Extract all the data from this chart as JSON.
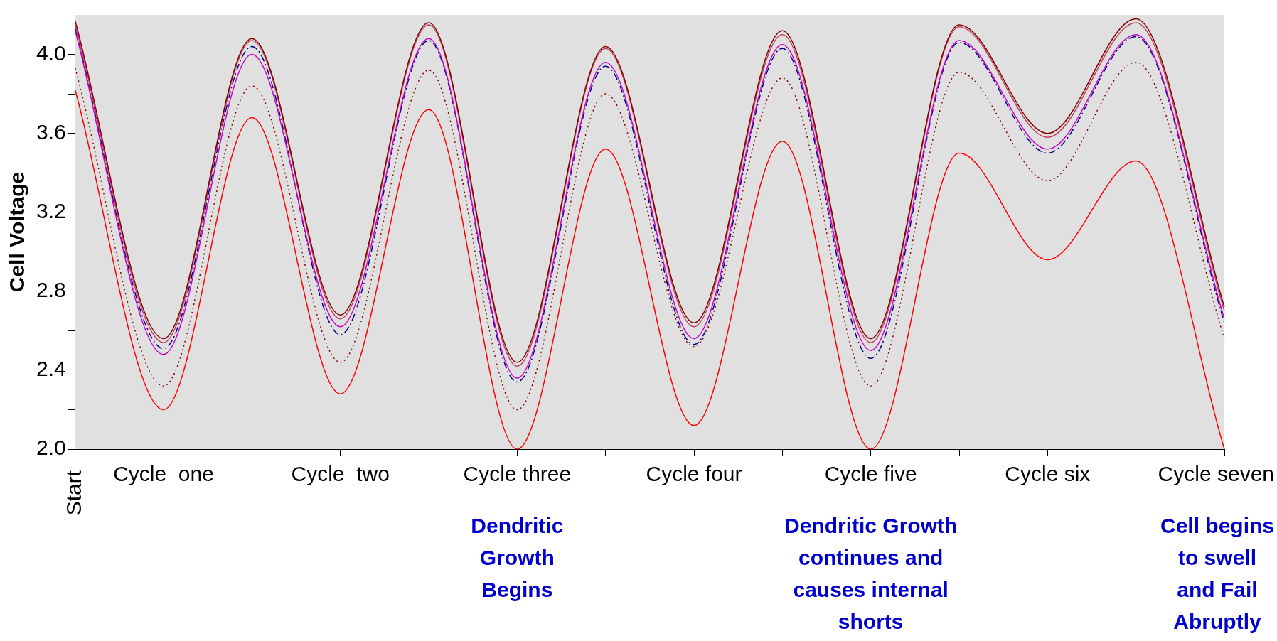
{
  "chart_data": {
    "type": "line",
    "ylabel": "Cell Voltage",
    "categories": [
      "Start",
      "Cycle  one",
      null,
      "Cycle  two",
      null,
      "Cycle three",
      null,
      "Cycle four",
      null,
      "Cycle five",
      null,
      "Cycle six",
      null,
      "Cycle seven"
    ],
    "series": [
      {
        "color": "#800000",
        "line_style": "solid",
        "values": [
          4.17,
          2.56,
          4.08,
          2.68,
          4.16,
          2.44,
          4.04,
          2.64,
          4.12,
          2.56,
          4.15,
          3.6,
          4.18,
          2.72
        ]
      },
      {
        "color": "#c04060",
        "line_style": "solid",
        "values": [
          4.15,
          2.54,
          4.07,
          2.66,
          4.15,
          2.42,
          4.03,
          2.62,
          4.1,
          2.54,
          4.14,
          3.58,
          4.16,
          2.7
        ]
      },
      {
        "color": "#cc00cc",
        "line_style": "solid",
        "values": [
          4.12,
          2.48,
          4.0,
          2.62,
          4.08,
          2.36,
          3.96,
          2.56,
          4.05,
          2.5,
          4.07,
          3.52,
          4.1,
          2.66
        ]
      },
      {
        "color": "#000080",
        "line_style": "dashed",
        "values": [
          4.13,
          2.51,
          4.04,
          2.58,
          4.07,
          2.34,
          3.94,
          2.53,
          4.03,
          2.46,
          4.06,
          3.5,
          4.09,
          2.64
        ]
      },
      {
        "color": "#800000",
        "line_style": "dotted",
        "values": [
          3.93,
          2.32,
          3.84,
          2.44,
          3.92,
          2.2,
          3.8,
          2.52,
          3.88,
          2.32,
          3.91,
          3.36,
          3.96,
          2.56
        ]
      },
      {
        "color": "#ff0000",
        "line_style": "solid",
        "values": [
          3.82,
          2.2,
          3.68,
          2.28,
          3.72,
          2.0,
          3.52,
          2.12,
          3.56,
          2.0,
          3.5,
          2.96,
          3.46,
          2.0
        ]
      }
    ],
    "ylim": [
      2.0,
      4.2
    ],
    "yticks": [
      {
        "value": 2.0,
        "label": "2.0"
      },
      {
        "value": 2.2,
        "label": null
      },
      {
        "value": 2.4,
        "label": "2.4"
      },
      {
        "value": 2.6,
        "label": null
      },
      {
        "value": 2.8,
        "label": "2.8"
      },
      {
        "value": 3.0,
        "label": null
      },
      {
        "value": 3.2,
        "label": "3.2"
      },
      {
        "value": 3.4,
        "label": null
      },
      {
        "value": 3.6,
        "label": "3.6"
      },
      {
        "value": 3.8,
        "label": null
      },
      {
        "value": 4.0,
        "label": "4.0"
      }
    ],
    "grid": false,
    "legend": false,
    "marker": "none",
    "annotations": [
      "Dendritic\nGrowth\nBegins",
      "Dendritic Growth\ncontinues and\ncauses internal\nshorts",
      "Cell begins\nto swell\nand Fail\nAbruptly"
    ]
  }
}
